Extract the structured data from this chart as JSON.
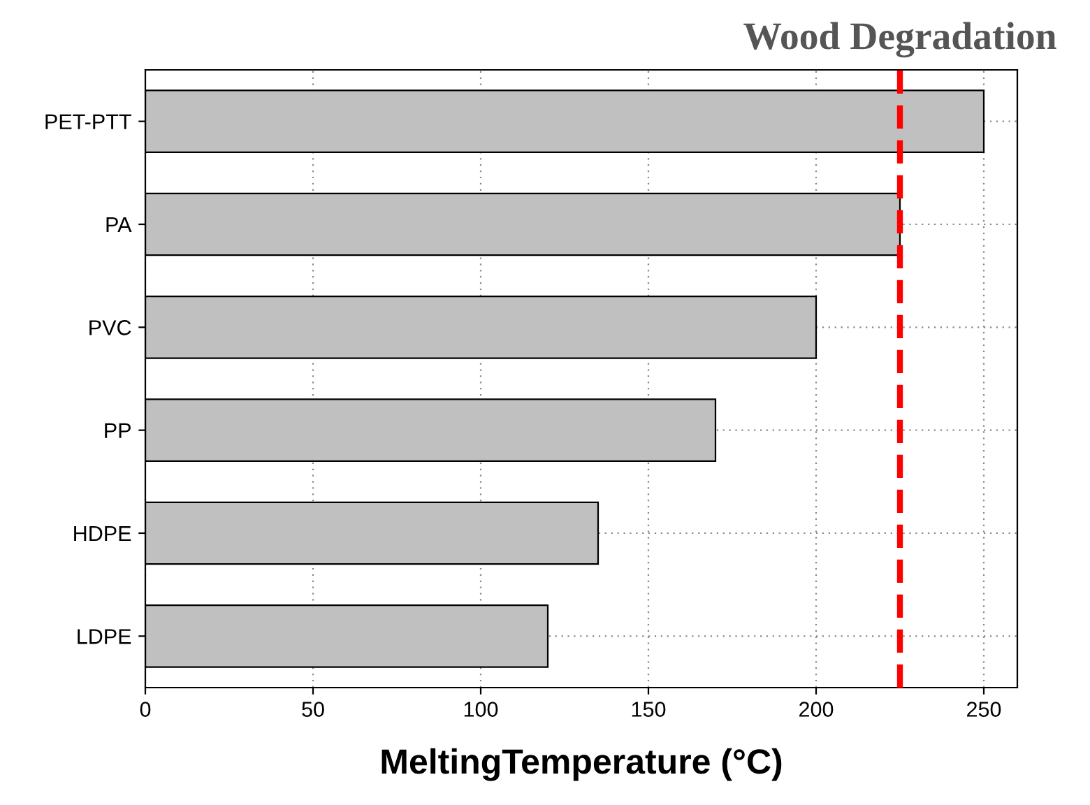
{
  "chart_data": {
    "type": "bar",
    "orientation": "horizontal",
    "xlabel": "MeltingTemperature (°C)",
    "categories": [
      "PET-PTT",
      "PA",
      "PVC",
      "PP",
      "HDPE",
      "LDPE"
    ],
    "values": [
      250,
      225,
      200,
      170,
      135,
      120
    ],
    "color": "#c0c0c0",
    "xlim": [
      0,
      260
    ],
    "xticks": [
      0,
      50,
      100,
      150,
      200,
      250
    ],
    "grid": true,
    "ref_lines": [
      {
        "axis": "x",
        "value": 225,
        "label": "Wood Degradation",
        "color": "#ff0000",
        "line_style": "dashed"
      }
    ]
  }
}
